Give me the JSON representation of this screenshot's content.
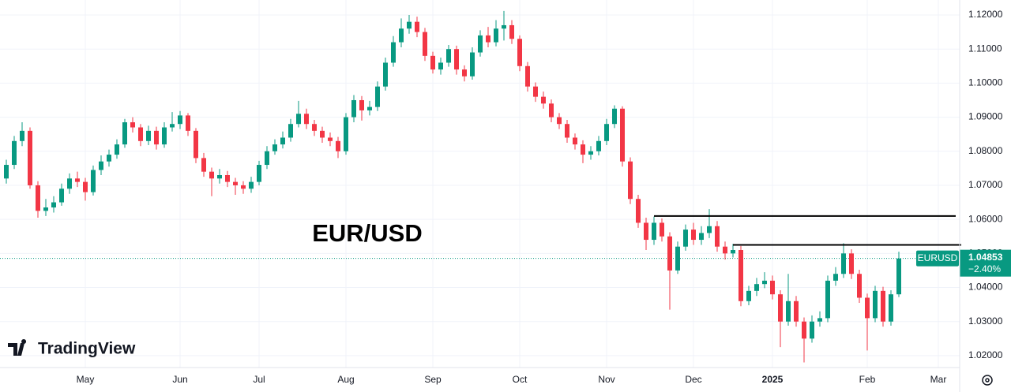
{
  "chart_data": {
    "type": "candlestick",
    "watermark": "EUR/USD",
    "brand": "TradingView",
    "symbol": "EURUSD",
    "last_price": {
      "value": 1.04853,
      "label": "1.04853"
    },
    "change": {
      "value": -2.4,
      "label": "−2.40%"
    },
    "up_color": "#089981",
    "down_color": "#f23645",
    "levels": [
      1.061,
      1.0525
    ],
    "categories": [
      null,
      null,
      null,
      null,
      null,
      null,
      null,
      null,
      null,
      null,
      "May",
      null,
      null,
      null,
      null,
      null,
      null,
      null,
      null,
      null,
      null,
      null,
      "Jun",
      null,
      null,
      null,
      null,
      null,
      null,
      null,
      null,
      null,
      "Jul",
      null,
      null,
      null,
      null,
      null,
      null,
      null,
      null,
      null,
      null,
      "Aug",
      null,
      null,
      null,
      null,
      null,
      null,
      null,
      null,
      null,
      null,
      "Sep",
      null,
      null,
      null,
      null,
      null,
      null,
      null,
      null,
      null,
      null,
      "Oct",
      null,
      null,
      null,
      null,
      null,
      null,
      null,
      null,
      null,
      null,
      "Nov",
      null,
      null,
      null,
      null,
      null,
      null,
      null,
      null,
      null,
      null,
      "Dec",
      null,
      null,
      null,
      null,
      null,
      null,
      null,
      null,
      null,
      "2025",
      null,
      null,
      null,
      null,
      null,
      null,
      null,
      null,
      null,
      null,
      null,
      "Feb",
      null,
      null,
      null,
      null,
      null,
      null,
      null,
      null,
      "Mar",
      null,
      null
    ],
    "open": [
      1.072,
      1.076,
      1.083,
      1.086,
      1.07,
      1.0625,
      1.0635,
      1.065,
      1.069,
      1.072,
      1.071,
      1.068,
      1.0745,
      1.077,
      1.079,
      1.082,
      1.0885,
      1.087,
      1.083,
      1.086,
      1.082,
      1.087,
      1.088,
      1.0905,
      1.086,
      1.078,
      1.074,
      1.072,
      1.073,
      1.071,
      1.07,
      1.069,
      1.071,
      1.076,
      1.08,
      1.082,
      1.084,
      1.088,
      1.091,
      1.088,
      1.086,
      1.084,
      1.083,
      1.08,
      1.09,
      1.095,
      1.092,
      1.093,
      1.099,
      1.106,
      1.112,
      1.116,
      1.118,
      1.115,
      1.108,
      1.104,
      1.106,
      1.11,
      1.104,
      1.102,
      1.109,
      1.114,
      1.112,
      1.116,
      1.117,
      1.113,
      1.105,
      1.099,
      1.096,
      1.094,
      1.09,
      1.088,
      1.084,
      1.082,
      1.079,
      1.08,
      1.083,
      1.088,
      1.0925,
      1.077,
      1.066,
      1.059,
      1.054,
      1.059,
      1.055,
      1.045,
      1.052,
      1.057,
      1.054,
      1.056,
      1.058,
      1.052,
      1.05,
      1.051,
      1.036,
      1.039,
      1.041,
      1.042,
      1.038,
      1.03,
      1.036,
      1.03,
      1.025,
      1.03,
      1.031,
      1.042,
      1.044,
      1.05,
      1.044,
      1.037,
      1.031,
      1.039,
      1.03,
      1.038,
      null,
      null,
      null,
      null,
      null,
      null,
      null
    ],
    "high": [
      1.0775,
      1.0845,
      1.0885,
      1.087,
      1.0712,
      1.066,
      1.0668,
      1.0705,
      1.0735,
      1.074,
      1.0722,
      1.0758,
      1.0788,
      1.0805,
      1.0835,
      1.0895,
      1.09,
      1.088,
      1.0875,
      1.0872,
      1.0885,
      1.0915,
      1.0918,
      1.0912,
      1.0868,
      1.0795,
      1.0752,
      1.0748,
      1.0742,
      1.0722,
      1.0712,
      1.0725,
      1.0772,
      1.0815,
      1.0835,
      1.0858,
      1.0895,
      1.0948,
      1.0925,
      1.0892,
      1.0872,
      1.0855,
      1.0842,
      1.0912,
      1.0965,
      1.0962,
      1.0948,
      1.1005,
      1.1075,
      1.1138,
      1.119,
      1.12,
      1.1195,
      1.1162,
      1.1092,
      1.1075,
      1.1112,
      1.111,
      1.1052,
      1.1105,
      1.1155,
      1.1165,
      1.1185,
      1.1212,
      1.1185,
      1.114,
      1.1062,
      1.1002,
      1.0975,
      1.0952,
      1.0912,
      1.0892,
      1.0852,
      1.0832,
      1.0815,
      1.0845,
      1.0895,
      1.0935,
      1.0932,
      1.0782,
      1.0672,
      1.0605,
      1.0608,
      1.0603,
      1.0562,
      1.0535,
      1.0585,
      1.059,
      1.058,
      1.063,
      1.0595,
      1.0535,
      1.0528,
      1.0522,
      1.0405,
      1.0428,
      1.0445,
      1.0435,
      1.0392,
      1.044,
      1.0375,
      1.0312,
      1.0318,
      1.033,
      1.0435,
      1.046,
      1.053,
      1.0512,
      1.0452,
      1.0382,
      1.0405,
      1.0402,
      1.0392,
      1.0505,
      null,
      null,
      null,
      null,
      null,
      null,
      null
    ],
    "low": [
      1.0705,
      1.0748,
      1.0815,
      1.069,
      1.0605,
      1.061,
      1.062,
      1.064,
      1.0675,
      1.0695,
      1.0655,
      1.067,
      1.073,
      1.0755,
      1.0778,
      1.081,
      1.0855,
      1.0815,
      1.0818,
      1.0805,
      1.081,
      1.0858,
      1.0865,
      1.0845,
      1.0765,
      1.0725,
      1.0668,
      1.0705,
      1.0695,
      1.0672,
      1.0675,
      1.0678,
      1.07,
      1.0748,
      1.079,
      1.0808,
      1.0828,
      1.087,
      1.0865,
      1.0845,
      1.0825,
      1.0815,
      1.078,
      1.079,
      1.0885,
      1.089,
      1.0905,
      1.0918,
      1.0978,
      1.1048,
      1.1105,
      1.1145,
      1.1135,
      1.1065,
      1.1028,
      1.1025,
      1.1048,
      1.1025,
      1.1005,
      1.101,
      1.1078,
      1.1105,
      1.1108,
      1.1125,
      1.1115,
      1.1035,
      1.0975,
      1.0945,
      1.0925,
      1.0885,
      1.0865,
      1.0825,
      1.0805,
      1.0765,
      1.0775,
      1.0788,
      1.0818,
      1.0868,
      1.0755,
      1.0645,
      1.0575,
      1.051,
      1.0525,
      1.0535,
      1.0335,
      1.044,
      1.0508,
      1.0525,
      1.0525,
      1.0545,
      1.0505,
      1.0482,
      1.0488,
      1.0345,
      1.0348,
      1.0375,
      1.0398,
      1.0365,
      1.0225,
      1.0288,
      1.0285,
      1.018,
      1.0238,
      1.0285,
      1.0298,
      1.0405,
      1.0428,
      1.0425,
      1.0355,
      1.0215,
      1.0298,
      1.0285,
      1.0288,
      1.0372,
      null,
      null,
      null,
      null,
      null,
      null,
      null
    ],
    "close": [
      1.076,
      1.083,
      1.086,
      1.07,
      1.0625,
      1.0635,
      1.065,
      1.069,
      1.072,
      1.071,
      1.068,
      1.0745,
      1.077,
      1.079,
      1.082,
      1.0885,
      1.087,
      1.083,
      1.086,
      1.082,
      1.087,
      1.088,
      1.0905,
      1.086,
      1.078,
      1.074,
      1.072,
      1.073,
      1.071,
      1.07,
      1.069,
      1.071,
      1.076,
      1.08,
      1.082,
      1.084,
      1.088,
      1.091,
      1.088,
      1.086,
      1.084,
      1.083,
      1.08,
      1.09,
      1.095,
      1.092,
      1.093,
      1.099,
      1.106,
      1.112,
      1.116,
      1.118,
      1.115,
      1.108,
      1.104,
      1.106,
      1.11,
      1.104,
      1.102,
      1.109,
      1.114,
      1.112,
      1.116,
      1.117,
      1.113,
      1.105,
      1.099,
      1.096,
      1.094,
      1.09,
      1.088,
      1.084,
      1.082,
      1.079,
      1.08,
      1.083,
      1.088,
      1.0925,
      1.077,
      1.066,
      1.059,
      1.054,
      1.059,
      1.055,
      1.045,
      1.052,
      1.057,
      1.054,
      1.056,
      1.058,
      1.052,
      1.05,
      1.051,
      1.036,
      1.039,
      1.041,
      1.042,
      1.038,
      1.03,
      1.036,
      1.03,
      1.025,
      1.03,
      1.031,
      1.042,
      1.044,
      1.05,
      1.044,
      1.037,
      1.031,
      1.039,
      1.03,
      1.038,
      1.0485,
      null,
      null,
      null,
      null,
      null,
      null,
      null
    ],
    "ylim": [
      1.0165,
      1.1244
    ],
    "yticks": [
      {
        "value": 1.02,
        "label": "1.02000"
      },
      {
        "value": 1.03,
        "label": "1.03000"
      },
      {
        "value": 1.04,
        "label": "1.04000"
      },
      {
        "value": 1.05,
        "label": "1.05000"
      },
      {
        "value": 1.06,
        "label": "1.06000"
      },
      {
        "value": 1.07,
        "label": "1.07000"
      },
      {
        "value": 1.08,
        "label": "1.08000"
      },
      {
        "value": 1.09,
        "label": "1.09000"
      },
      {
        "value": 1.1,
        "label": "1.10000"
      },
      {
        "value": 1.11,
        "label": "1.11000"
      },
      {
        "value": 1.12,
        "label": "1.12000"
      }
    ],
    "grid": true
  }
}
